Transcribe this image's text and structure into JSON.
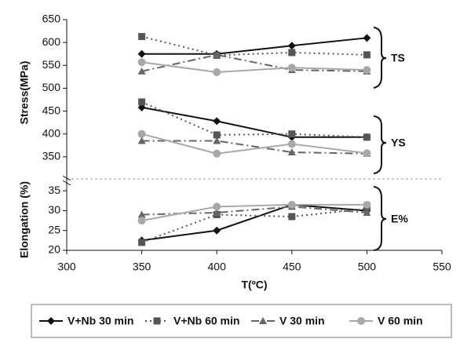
{
  "chart_data": [
    {
      "type": "line",
      "y_label": "Stress(MPa)",
      "x": [
        350,
        400,
        450,
        500
      ],
      "xlim": [
        300,
        550
      ],
      "ylim": [
        300,
        650
      ],
      "yticks": [
        350,
        400,
        450,
        500,
        550,
        600,
        650
      ],
      "annotations": [
        "TS",
        "YS"
      ],
      "series": [
        {
          "name": "V+Nb 30 min",
          "color": "#111111",
          "dash": "solid",
          "marker": "diamond",
          "ts": [
            575,
            575,
            593,
            610
          ],
          "ys": [
            458,
            428,
            393,
            393
          ]
        },
        {
          "name": "V+Nb 60 min",
          "color": "#555555",
          "dash": "dotted",
          "marker": "square",
          "ts": [
            613,
            572,
            578,
            573
          ],
          "ys": [
            470,
            398,
            400,
            393
          ]
        },
        {
          "name": "V 30 min",
          "color": "#666666",
          "dash": "dashdot",
          "marker": "triangle",
          "ts": [
            537,
            573,
            540,
            537
          ],
          "ys": [
            385,
            385,
            360,
            357
          ]
        },
        {
          "name": "V 60 min",
          "color": "#a8a8a8",
          "dash": "solid",
          "marker": "circle",
          "ts": [
            557,
            535,
            545,
            540
          ],
          "ys": [
            400,
            357,
            378,
            358
          ]
        }
      ]
    },
    {
      "type": "line",
      "y_label": "Elongation (%)",
      "x_label": "T(ºC)",
      "x": [
        350,
        400,
        450,
        500
      ],
      "xlim": [
        300,
        550
      ],
      "xticks": [
        300,
        350,
        400,
        450,
        500,
        550
      ],
      "ylim": [
        20,
        38
      ],
      "yticks": [
        20,
        25,
        30,
        35
      ],
      "annotations": [
        "E%"
      ],
      "series": [
        {
          "color": "#111111",
          "dash": "solid",
          "marker": "diamond",
          "values": [
            22.5,
            25,
            31.5,
            30
          ]
        },
        {
          "color": "#555555",
          "dash": "dotted",
          "marker": "square",
          "values": [
            22,
            29,
            28.5,
            30.5
          ]
        },
        {
          "color": "#666666",
          "dash": "dashdot",
          "marker": "triangle",
          "values": [
            29,
            29.5,
            31,
            29.5
          ]
        },
        {
          "color": "#a8a8a8",
          "dash": "solid",
          "marker": "circle",
          "values": [
            27.5,
            31,
            31.5,
            31.5
          ]
        }
      ]
    }
  ]
}
